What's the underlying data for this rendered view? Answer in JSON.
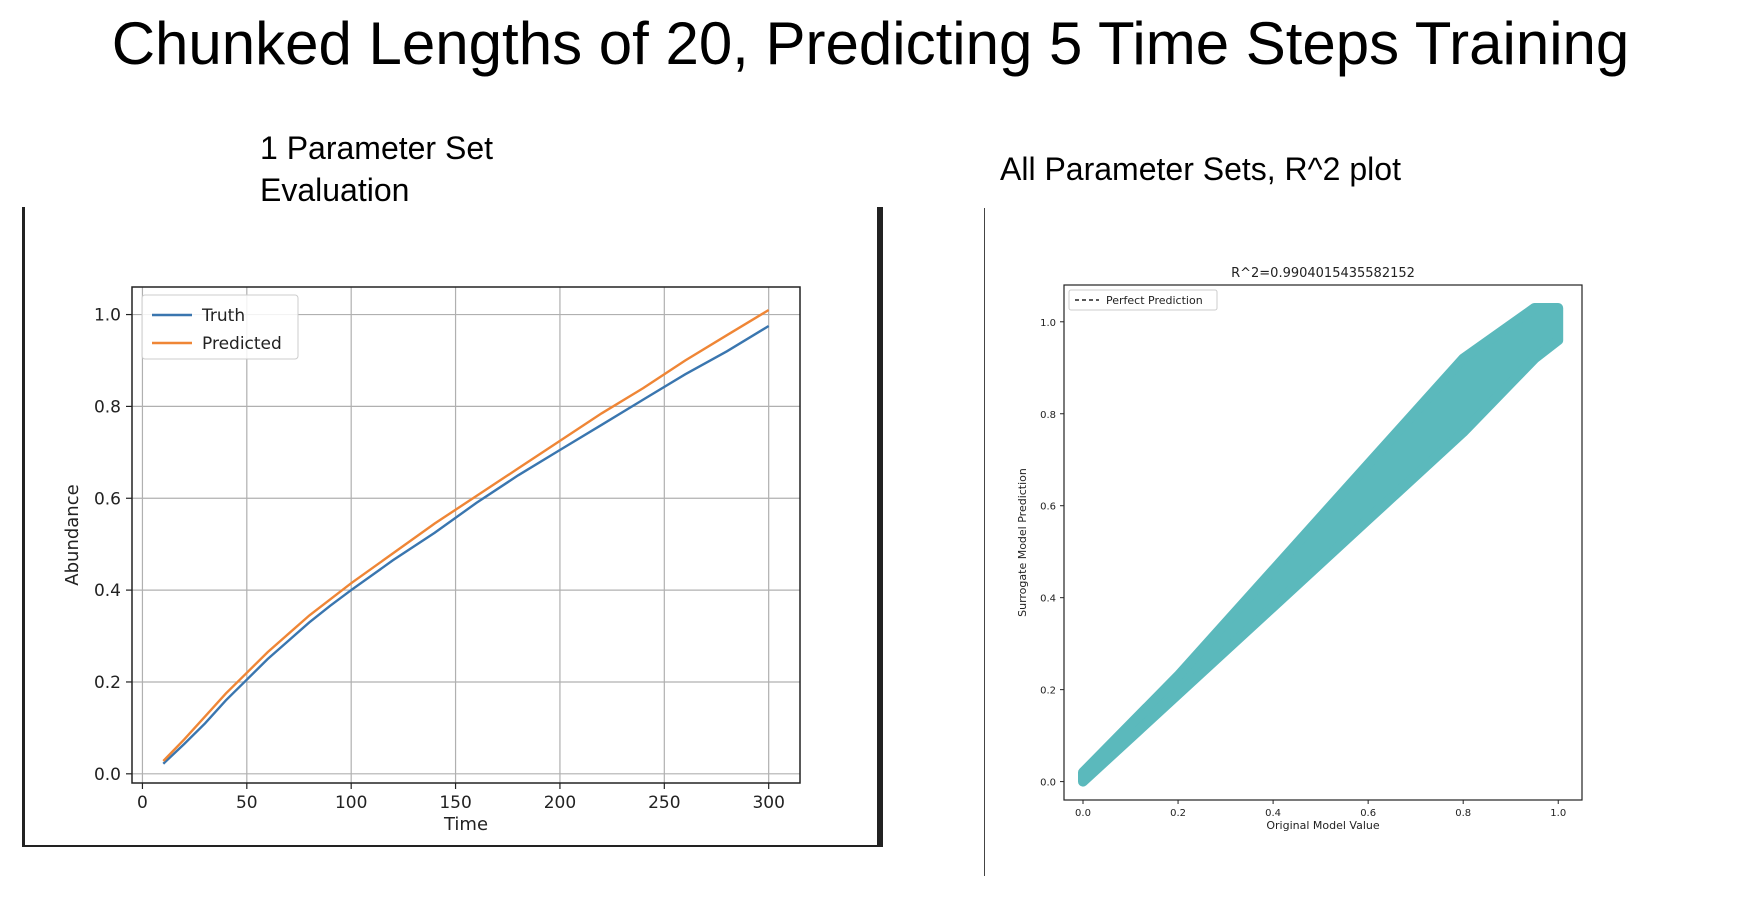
{
  "slide": {
    "title": "Chunked Lengths of 20, Predicting 5 Time Steps Training",
    "left_heading_line1": "1 Parameter Set",
    "left_heading_line2": "Evaluation",
    "right_heading": "All Parameter Sets, R^2 plot"
  },
  "chart_data": [
    {
      "type": "line",
      "xlabel": "Time",
      "ylabel": "Abundance",
      "xlim": [
        -5,
        315
      ],
      "ylim": [
        -0.02,
        1.06
      ],
      "xticks": [
        0,
        50,
        100,
        150,
        200,
        250,
        300
      ],
      "xtick_labels": [
        "0",
        "50",
        "100",
        "150",
        "200",
        "250",
        "300"
      ],
      "yticks": [
        0.0,
        0.2,
        0.4,
        0.6,
        0.8,
        1.0
      ],
      "ytick_labels": [
        "0.0",
        "0.2",
        "0.4",
        "0.6",
        "0.8",
        "1.0"
      ],
      "grid": true,
      "legend": "top-left",
      "series": [
        {
          "name": "Truth",
          "color": "#3a76af",
          "x": [
            10,
            20,
            30,
            40,
            50,
            60,
            70,
            80,
            90,
            100,
            120,
            140,
            160,
            180,
            200,
            220,
            240,
            260,
            280,
            300
          ],
          "y": [
            0.022,
            0.065,
            0.11,
            0.16,
            0.205,
            0.25,
            0.29,
            0.33,
            0.366,
            0.4,
            0.465,
            0.525,
            0.59,
            0.65,
            0.705,
            0.76,
            0.815,
            0.87,
            0.92,
            0.975
          ]
        },
        {
          "name": "Predicted",
          "color": "#ef8636",
          "x": [
            10,
            20,
            30,
            40,
            50,
            60,
            70,
            80,
            90,
            100,
            120,
            140,
            160,
            180,
            200,
            220,
            240,
            260,
            280,
            300
          ],
          "y": [
            0.028,
            0.075,
            0.125,
            0.175,
            0.22,
            0.265,
            0.305,
            0.345,
            0.38,
            0.415,
            0.48,
            0.545,
            0.605,
            0.665,
            0.725,
            0.785,
            0.84,
            0.9,
            0.955,
            1.01
          ]
        }
      ]
    },
    {
      "type": "scatter",
      "title": "R^2=0.9904015435582152",
      "xlabel": "Original Model Value",
      "ylabel": "Surrogate Model Prediction",
      "xlim": [
        -0.04,
        1.05
      ],
      "ylim": [
        -0.04,
        1.08
      ],
      "xticks": [
        0.0,
        0.2,
        0.4,
        0.6,
        0.8,
        1.0
      ],
      "xtick_labels": [
        "0.0",
        "0.2",
        "0.4",
        "0.6",
        "0.8",
        "1.0"
      ],
      "yticks": [
        0.0,
        0.2,
        0.4,
        0.6,
        0.8,
        1.0
      ],
      "ytick_labels": [
        "0.0",
        "0.2",
        "0.4",
        "0.6",
        "0.8",
        "1.0"
      ],
      "grid": false,
      "legend": "top-left",
      "legend_entries": [
        "Perfect Prediction"
      ],
      "point_color": "#5bb9bc",
      "band": {
        "x": [
          0.0,
          0.2,
          0.4,
          0.6,
          0.8,
          0.95,
          1.0
        ],
        "upper": [
          0.02,
          0.23,
          0.46,
          0.69,
          0.92,
          1.03,
          1.03
        ],
        "lower": [
          0.0,
          0.19,
          0.38,
          0.57,
          0.76,
          0.92,
          0.96
        ]
      }
    }
  ]
}
